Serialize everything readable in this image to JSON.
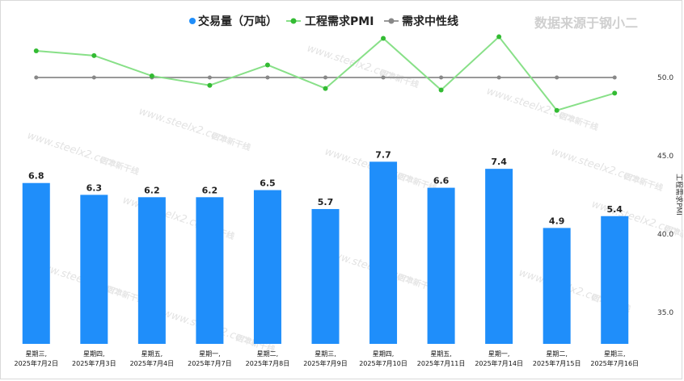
{
  "legend": {
    "volume_label": "交易量（万吨）",
    "pmi_label": "工程需求PMI",
    "neutral_label": "需求中性线"
  },
  "source_note": "数据来源于钢小二",
  "watermark": {
    "url_text": "www.steelx2.com",
    "logo_text": "西本新干线"
  },
  "colors": {
    "bar": "#1f8efa",
    "pmi_line": "#88e088",
    "pmi_point": "#33bb33",
    "neutral_line": "#999999",
    "neutral_point": "#888888"
  },
  "chart_data": {
    "type": "bar",
    "categories": [
      [
        "星期三,",
        "2025年7月2日"
      ],
      [
        "星期四,",
        "2025年7月3日"
      ],
      [
        "星期五,",
        "2025年7月4日"
      ],
      [
        "星期一,",
        "2025年7月7日"
      ],
      [
        "星期二,",
        "2025年7月8日"
      ],
      [
        "星期三,",
        "2025年7月9日"
      ],
      [
        "星期四,",
        "2025年7月10日"
      ],
      [
        "星期五,",
        "2025年7月11日"
      ],
      [
        "星期一,",
        "2025年7月14日"
      ],
      [
        "星期二,",
        "2025年7月15日"
      ],
      [
        "星期三,",
        "2025年7月16日"
      ]
    ],
    "series": [
      {
        "name": "交易量（万吨）",
        "type": "bar",
        "values": [
          6.8,
          6.3,
          6.2,
          6.2,
          6.5,
          5.7,
          7.7,
          6.6,
          7.4,
          4.9,
          5.4
        ],
        "value_labels": [
          "6.8",
          "6.3",
          "6.2",
          "6.2",
          "6.5",
          "5.7",
          "7.7",
          "6.6",
          "7.4",
          "4.9",
          "5.4"
        ]
      },
      {
        "name": "工程需求PMI",
        "type": "line",
        "axis": "right",
        "values": [
          51.7,
          51.4,
          50.1,
          49.5,
          50.8,
          49.3,
          52.5,
          49.2,
          52.6,
          47.9,
          49.0
        ]
      },
      {
        "name": "需求中性线",
        "type": "line",
        "axis": "right",
        "values": [
          50,
          50,
          50,
          50,
          50,
          50,
          50,
          50,
          50,
          50,
          50
        ]
      }
    ],
    "left_axis": {
      "range": [
        0,
        12
      ],
      "visible": false
    },
    "right_axis": {
      "range": [
        32.5,
        54.0
      ],
      "ticks": [
        "50.0",
        "45.0",
        "40.0",
        "35.0"
      ],
      "tick_values": [
        50,
        45,
        40,
        35
      ],
      "label": "工程需求PMI"
    },
    "grid": false,
    "legend_position": "top-center"
  }
}
